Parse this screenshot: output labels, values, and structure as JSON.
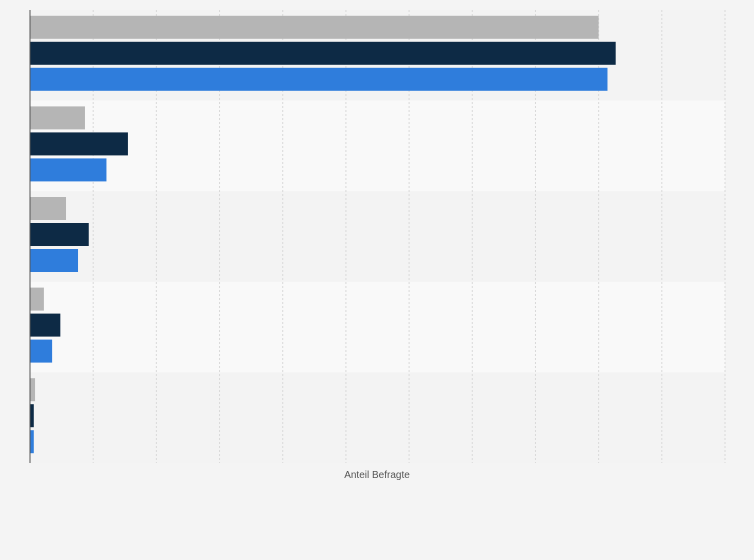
{
  "chart_data": {
    "type": "bar",
    "orientation": "horizontal",
    "title": "",
    "xlabel": "Anteil Befragte",
    "ylabel": "",
    "categories": [
      "",
      "",
      "",
      "",
      ""
    ],
    "series": [
      {
        "color": "#b5b5b5",
        "values": [
          90,
          8.7,
          5.7,
          2.2,
          0.8
        ]
      },
      {
        "color": "#0d2a45",
        "values": [
          92.7,
          15.5,
          9.3,
          4.8,
          0.6
        ]
      },
      {
        "color": "#2f7ddc",
        "values": [
          91.4,
          12.1,
          7.6,
          3.5,
          0.6
        ]
      }
    ],
    "xlim": [
      0,
      110
    ],
    "grid": true,
    "legend": "none"
  }
}
